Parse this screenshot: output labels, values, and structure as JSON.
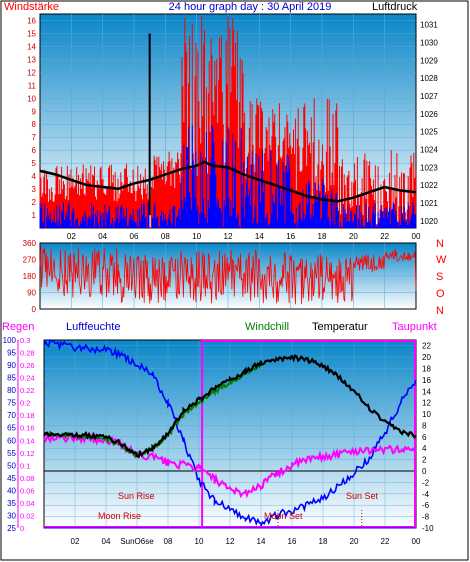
{
  "colors": {
    "wind_red": "#ff0000",
    "wind_blue": "#0000ff",
    "pressure_black": "#000000",
    "direction_red": "#ff0000",
    "temperature_black": "#000000",
    "windchill_green": "#008000",
    "dewpoint_magenta": "#ff00ff",
    "humidity_blue": "#0000ff",
    "rain_blue": "#0000ff",
    "sun_text": "#cc0000",
    "daylight_box": "#ff00ff",
    "gradient_top": "#0a86c8",
    "gradient_bottom": "#ffffff"
  },
  "top_panel": {
    "title": "24 hour graph day : 30 April 2019",
    "left_label": "Windstärke",
    "right_label": "Luftdruck",
    "wind_ticks": [
      "0",
      "1",
      "2",
      "3",
      "4",
      "5",
      "6",
      "7",
      "8",
      "9",
      "10",
      "11",
      "12",
      "13",
      "14",
      "15",
      "16"
    ],
    "pressure_ticks": [
      "1020",
      "1021",
      "1022",
      "1023",
      "1024",
      "1025",
      "1026",
      "1027",
      "1028",
      "1029",
      "1030",
      "1031"
    ],
    "hour_ticks": [
      "02",
      "04",
      "06",
      "08",
      "10",
      "12",
      "14",
      "16",
      "18",
      "20",
      "22",
      "00"
    ]
  },
  "mid_panel": {
    "direction_ticks": [
      "0",
      "90",
      "180",
      "270",
      "360"
    ],
    "compass_letters": [
      "N",
      "W",
      "S",
      "O",
      "N"
    ]
  },
  "bottom_panel": {
    "labels": {
      "rain": "Regen",
      "humidity": "Luftfeuchte",
      "windchill": "Windchill",
      "temperature": "Temperatur",
      "dewpoint": "Taupunkt"
    },
    "humidity_ticks": [
      "25",
      "30",
      "35",
      "40",
      "45",
      "50",
      "55",
      "60",
      "65",
      "70",
      "75",
      "80",
      "85",
      "90",
      "95",
      "100"
    ],
    "rain_ticks": [
      "0",
      "0.02",
      "0.04",
      "0.06",
      "0.08",
      "0.1",
      "0.12",
      "0.14",
      "0.16",
      "0.18",
      "0.2",
      "0.22",
      "0.24",
      "0.26",
      "0.28",
      "0.3"
    ],
    "temperature_ticks": [
      "-10",
      "-8",
      "-6",
      "-4",
      "-2",
      "0",
      "2",
      "4",
      "6",
      "8",
      "10",
      "12",
      "14",
      "16",
      "18",
      "20",
      "22"
    ],
    "hour_ticks": [
      "02",
      "04",
      "SunO6se",
      "08",
      "10",
      "12",
      "14",
      "16",
      "18",
      "20",
      "22",
      "00"
    ],
    "annotations": {
      "sun_rise": "Sun Rise",
      "sun_set": "Sun Set",
      "moon_rise": "Moon Rise",
      "moon_set": "Moon Set"
    }
  },
  "chart_data": [
    {
      "type": "line",
      "title": "24 hour graph day : 30 April 2019",
      "x_unit": "hour",
      "xlim": [
        0,
        24
      ],
      "y_left": {
        "label": "Windstärke",
        "ylim": [
          0,
          16.5
        ]
      },
      "y_right": {
        "label": "Luftdruck",
        "ylim": [
          1019.6,
          1031.6
        ]
      },
      "series": [
        {
          "name": "Luftdruck",
          "axis": "right",
          "points": [
            [
              0,
              1022.8
            ],
            [
              1,
              1022.6
            ],
            [
              2,
              1022.3
            ],
            [
              3,
              1022.0
            ],
            [
              4,
              1021.9
            ],
            [
              5,
              1021.8
            ],
            [
              6,
              1022.1
            ],
            [
              7,
              1022.3
            ],
            [
              8,
              1022.6
            ],
            [
              9,
              1022.9
            ],
            [
              10,
              1023.1
            ],
            [
              10.5,
              1023.3
            ],
            [
              11,
              1023.1
            ],
            [
              12,
              1023.0
            ],
            [
              13,
              1022.6
            ],
            [
              14,
              1022.3
            ],
            [
              15,
              1022.0
            ],
            [
              16,
              1021.7
            ],
            [
              17,
              1021.4
            ],
            [
              18,
              1021.2
            ],
            [
              19,
              1021.1
            ],
            [
              20,
              1021.3
            ],
            [
              21,
              1021.6
            ],
            [
              22,
              1021.9
            ],
            [
              23,
              1021.7
            ],
            [
              24,
              1021.6
            ]
          ]
        }
      ],
      "wind_speed_bands": [
        {
          "from": 0,
          "to": 7,
          "gust_max": 5,
          "avg_max": 2,
          "gust_min": 2
        },
        {
          "from": 7,
          "to": 7.1,
          "spike": 15
        },
        {
          "from": 7.1,
          "to": 9,
          "gust_max": 6,
          "avg_max": 2,
          "gust_min": 3
        },
        {
          "from": 9,
          "to": 13,
          "gust_max": 16.5,
          "avg_max": 8,
          "gust_min": 4
        },
        {
          "from": 13,
          "to": 16,
          "gust_max": 10,
          "avg_max": 6,
          "gust_min": 3
        },
        {
          "from": 16,
          "to": 19,
          "gust_max": 10,
          "avg_max": 4,
          "gust_min": 2
        },
        {
          "from": 19,
          "to": 24,
          "gust_max": 6,
          "avg_max": 2,
          "gust_min": 0
        }
      ]
    },
    {
      "type": "line",
      "x_unit": "hour",
      "xlim": [
        0,
        24
      ],
      "ylim": [
        0,
        360
      ],
      "series": [
        {
          "name": "wind_direction",
          "bands": [
            [
              0,
              5,
              60,
              340
            ],
            [
              5,
              9,
              20,
              300
            ],
            [
              9,
              16,
              30,
              330
            ],
            [
              16,
              20,
              20,
              300
            ],
            [
              20,
              22,
              200,
              300
            ],
            [
              22,
              24,
              260,
              330
            ]
          ]
        }
      ]
    },
    {
      "type": "line",
      "x_unit": "hour",
      "xlim": [
        0,
        24
      ],
      "y_temperature": {
        "label": "Temperatur",
        "ylim": [
          -10,
          23
        ]
      },
      "y_humidity": {
        "label": "Luftfeuchte",
        "ylim": [
          25,
          100
        ]
      },
      "y_rain": {
        "label": "Regen",
        "ylim": [
          0,
          0.3
        ]
      },
      "series": [
        {
          "name": "Temperatur",
          "points": [
            [
              0,
              6.5
            ],
            [
              2,
              6.4
            ],
            [
              4,
              6.0
            ],
            [
              5,
              4.8
            ],
            [
              6,
              2.7
            ],
            [
              7,
              4.0
            ],
            [
              8,
              6.5
            ],
            [
              9,
              10.5
            ],
            [
              10,
              12.5
            ],
            [
              11,
              14.5
            ],
            [
              12,
              16.0
            ],
            [
              13,
              17.5
            ],
            [
              14,
              19.0
            ],
            [
              15,
              19.5
            ],
            [
              16,
              20.0
            ],
            [
              17,
              19.5
            ],
            [
              18,
              18.5
            ],
            [
              19,
              16.5
            ],
            [
              20,
              14.0
            ],
            [
              21,
              11.0
            ],
            [
              22,
              8.5
            ],
            [
              23,
              7.0
            ],
            [
              24,
              6.2
            ]
          ]
        },
        {
          "name": "Windchill",
          "points": [
            [
              0,
              6.5
            ],
            [
              2,
              6.2
            ],
            [
              4,
              5.5
            ],
            [
              5,
              4.5
            ],
            [
              6,
              2.6
            ],
            [
              7,
              3.9
            ],
            [
              8,
              6.3
            ],
            [
              9,
              10.0
            ],
            [
              10,
              12.0
            ],
            [
              11,
              14.0
            ],
            [
              12,
              15.5
            ],
            [
              13,
              17.2
            ],
            [
              14,
              18.8
            ]
          ]
        },
        {
          "name": "Taupunkt",
          "points": [
            [
              0,
              6.0
            ],
            [
              2,
              5.8
            ],
            [
              4,
              5.5
            ],
            [
              5,
              4.5
            ],
            [
              6,
              2.8
            ],
            [
              7,
              2.5
            ],
            [
              8,
              1.5
            ],
            [
              9,
              1.0
            ],
            [
              10,
              0.5
            ],
            [
              11,
              -1.5
            ],
            [
              12,
              -3.5
            ],
            [
              13,
              -3.8
            ],
            [
              14,
              -2.5
            ],
            [
              15,
              -0.5
            ],
            [
              16,
              1.0
            ],
            [
              17,
              2.0
            ],
            [
              18,
              2.5
            ],
            [
              19,
              3.0
            ],
            [
              20,
              3.5
            ],
            [
              21,
              3.8
            ],
            [
              22,
              3.7
            ],
            [
              23,
              3.8
            ],
            [
              24,
              3.8
            ]
          ]
        },
        {
          "name": "Luftfeuchte",
          "points": [
            [
              0,
              99
            ],
            [
              2,
              97
            ],
            [
              4,
              96
            ],
            [
              5,
              94
            ],
            [
              6,
              90
            ],
            [
              7,
              86
            ],
            [
              8,
              75
            ],
            [
              9,
              60
            ],
            [
              10,
              44
            ],
            [
              11,
              36
            ],
            [
              12,
              33
            ],
            [
              13,
              29
            ],
            [
              14,
              27
            ],
            [
              15,
              30
            ],
            [
              16,
              32
            ],
            [
              17,
              34
            ],
            [
              18,
              37
            ],
            [
              19,
              42
            ],
            [
              20,
              47
            ],
            [
              21,
              53
            ],
            [
              22,
              63
            ],
            [
              23,
              75
            ],
            [
              24,
              84
            ]
          ]
        },
        {
          "name": "Regen",
          "points": [
            [
              0,
              0
            ],
            [
              24,
              0
            ]
          ]
        }
      ],
      "sun_rise_hour": 6.1,
      "sun_set_hour": 20.5,
      "moon_rise_hour": 6.3,
      "moon_set_hour": 15.1
    }
  ]
}
